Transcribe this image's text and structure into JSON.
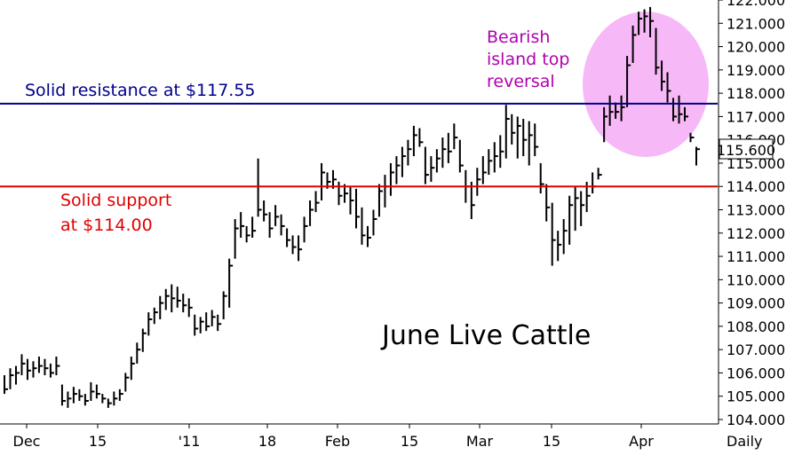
{
  "chart_data": {
    "type": "ohlc",
    "title": "June Live Cattle",
    "ylim": [
      104.0,
      122.0
    ],
    "y_ticks": [
      "104.000",
      "105.000",
      "106.000",
      "107.000",
      "108.000",
      "109.000",
      "110.000",
      "111.000",
      "112.000",
      "113.000",
      "114.000",
      "115.000",
      "116.000",
      "117.000",
      "118.000",
      "119.000",
      "120.000",
      "121.000",
      "122.000"
    ],
    "x_labels": [
      "Dec",
      "15",
      "'11",
      "18",
      "Feb",
      "15",
      "Mar",
      "15",
      "Apr"
    ],
    "x_label_periods": [
      "Daily"
    ],
    "last_price": "115.600",
    "resistance": {
      "price": 117.55,
      "label": "Solid resistance at $117.55",
      "color": "#00008b"
    },
    "support": {
      "price": 114.0,
      "label_lines": [
        "Solid support",
        "at $114.00"
      ],
      "color": "#e00000"
    },
    "island_annotation": {
      "lines": [
        "Bearish",
        "island top",
        "reversal"
      ],
      "color": "#b000b0",
      "fill": "#f6b6f6"
    },
    "bars": [
      [
        105.1,
        105.9,
        105.3
      ],
      [
        105.3,
        106.2,
        105.9
      ],
      [
        105.5,
        106.3,
        106.0
      ],
      [
        105.9,
        106.8,
        106.4
      ],
      [
        105.7,
        106.6,
        106.1
      ],
      [
        105.8,
        106.5,
        106.2
      ],
      [
        106.0,
        106.7,
        106.3
      ],
      [
        105.9,
        106.6,
        106.2
      ],
      [
        105.8,
        106.4,
        106.0
      ],
      [
        105.9,
        106.7,
        106.3
      ],
      [
        104.6,
        105.5,
        104.8
      ],
      [
        104.5,
        105.2,
        104.9
      ],
      [
        104.7,
        105.4,
        105.1
      ],
      [
        104.8,
        105.3,
        105.0
      ],
      [
        104.6,
        105.1,
        104.8
      ],
      [
        104.8,
        105.6,
        105.2
      ],
      [
        104.9,
        105.5,
        105.1
      ],
      [
        104.7,
        105.1,
        104.9
      ],
      [
        104.5,
        104.9,
        104.7
      ],
      [
        104.6,
        105.2,
        104.9
      ],
      [
        104.8,
        105.3,
        105.1
      ],
      [
        105.2,
        106.0,
        105.8
      ],
      [
        105.7,
        106.7,
        106.4
      ],
      [
        106.4,
        107.3,
        107.0
      ],
      [
        106.9,
        107.9,
        107.7
      ],
      [
        107.6,
        108.6,
        108.3
      ],
      [
        108.1,
        108.8,
        108.6
      ],
      [
        108.3,
        109.3,
        109.0
      ],
      [
        108.7,
        109.6,
        109.3
      ],
      [
        108.6,
        109.8,
        109.2
      ],
      [
        108.8,
        109.7,
        109.1
      ],
      [
        108.6,
        109.4,
        108.9
      ],
      [
        108.4,
        109.2,
        108.8
      ],
      [
        107.6,
        108.5,
        107.9
      ],
      [
        107.7,
        108.4,
        108.2
      ],
      [
        107.8,
        108.6,
        108.0
      ],
      [
        108.0,
        108.7,
        108.4
      ],
      [
        107.8,
        108.5,
        108.1
      ],
      [
        108.3,
        109.5,
        109.3
      ],
      [
        108.8,
        110.9,
        110.6
      ],
      [
        110.9,
        112.6,
        112.2
      ],
      [
        111.8,
        112.9,
        112.3
      ],
      [
        111.6,
        112.3,
        111.9
      ],
      [
        111.8,
        112.7,
        112.1
      ],
      [
        112.7,
        115.2,
        113.0
      ],
      [
        112.5,
        113.4,
        112.8
      ],
      [
        111.8,
        112.9,
        112.2
      ],
      [
        112.3,
        113.2,
        112.7
      ],
      [
        111.9,
        112.8,
        112.3
      ],
      [
        111.4,
        112.2,
        111.7
      ],
      [
        111.1,
        111.9,
        111.4
      ],
      [
        110.8,
        111.9,
        111.3
      ],
      [
        111.6,
        112.7,
        112.3
      ],
      [
        112.3,
        113.4,
        113.0
      ],
      [
        112.9,
        113.8,
        113.3
      ],
      [
        113.4,
        115.0,
        114.6
      ],
      [
        113.9,
        114.6,
        114.2
      ],
      [
        113.9,
        114.7,
        114.3
      ],
      [
        113.2,
        114.2,
        113.6
      ],
      [
        113.3,
        114.1,
        113.7
      ],
      [
        112.8,
        114.0,
        113.4
      ],
      [
        112.2,
        113.9,
        112.7
      ],
      [
        111.5,
        113.1,
        111.9
      ],
      [
        111.4,
        112.3,
        111.8
      ],
      [
        111.9,
        113.0,
        112.6
      ],
      [
        112.7,
        114.1,
        113.8
      ],
      [
        113.1,
        114.5,
        114.0
      ],
      [
        113.6,
        115.0,
        114.6
      ],
      [
        114.1,
        115.3,
        114.9
      ],
      [
        114.4,
        115.7,
        115.3
      ],
      [
        114.9,
        116.0,
        115.6
      ],
      [
        115.3,
        116.6,
        116.2
      ],
      [
        115.7,
        116.5,
        115.9
      ],
      [
        114.1,
        115.7,
        114.5
      ],
      [
        114.2,
        115.3,
        114.8
      ],
      [
        114.6,
        115.6,
        115.2
      ],
      [
        114.8,
        116.1,
        115.6
      ],
      [
        115.0,
        116.3,
        115.5
      ],
      [
        115.6,
        116.7,
        116.1
      ],
      [
        114.6,
        116.0,
        114.9
      ],
      [
        113.3,
        114.7,
        114.0
      ],
      [
        112.6,
        114.2,
        113.2
      ],
      [
        113.6,
        114.8,
        114.3
      ],
      [
        114.1,
        115.3,
        114.6
      ],
      [
        114.5,
        115.6,
        115.1
      ],
      [
        114.6,
        115.9,
        115.3
      ],
      [
        114.8,
        116.2,
        115.5
      ],
      [
        115.2,
        117.5,
        116.9
      ],
      [
        115.8,
        117.1,
        116.3
      ],
      [
        115.2,
        117.0,
        116.6
      ],
      [
        115.3,
        116.9,
        116.0
      ],
      [
        114.9,
        116.8,
        116.2
      ],
      [
        115.3,
        116.7,
        115.7
      ],
      [
        113.7,
        115.0,
        114.1
      ],
      [
        112.5,
        114.1,
        113.1
      ],
      [
        110.6,
        113.3,
        111.7
      ],
      [
        110.8,
        112.1,
        111.5
      ],
      [
        111.1,
        112.6,
        112.1
      ],
      [
        111.5,
        113.6,
        113.2
      ],
      [
        112.1,
        114.0,
        113.5
      ],
      [
        112.3,
        113.8,
        113.2
      ],
      [
        112.9,
        114.2,
        113.6
      ],
      [
        113.7,
        114.6,
        114.0
      ],
      [
        114.3,
        114.8,
        114.5
      ],
      [
        115.9,
        117.4,
        117.0
      ],
      [
        116.6,
        117.9,
        117.2
      ],
      [
        116.9,
        117.6,
        117.2
      ],
      [
        116.8,
        117.9,
        117.4
      ],
      [
        117.4,
        119.6,
        119.2
      ],
      [
        119.3,
        120.9,
        120.5
      ],
      [
        120.5,
        121.5,
        121.2
      ],
      [
        120.6,
        121.6,
        121.3
      ],
      [
        120.4,
        121.7,
        121.1
      ],
      [
        118.8,
        120.8,
        119.1
      ],
      [
        118.1,
        119.4,
        118.5
      ],
      [
        117.6,
        118.9,
        118.1
      ],
      [
        116.8,
        117.8,
        117.0
      ],
      [
        116.7,
        117.9,
        117.1
      ],
      [
        116.8,
        117.4,
        117.0
      ],
      [
        115.9,
        116.3,
        116.1
      ],
      [
        114.9,
        115.7,
        115.6
      ]
    ]
  }
}
